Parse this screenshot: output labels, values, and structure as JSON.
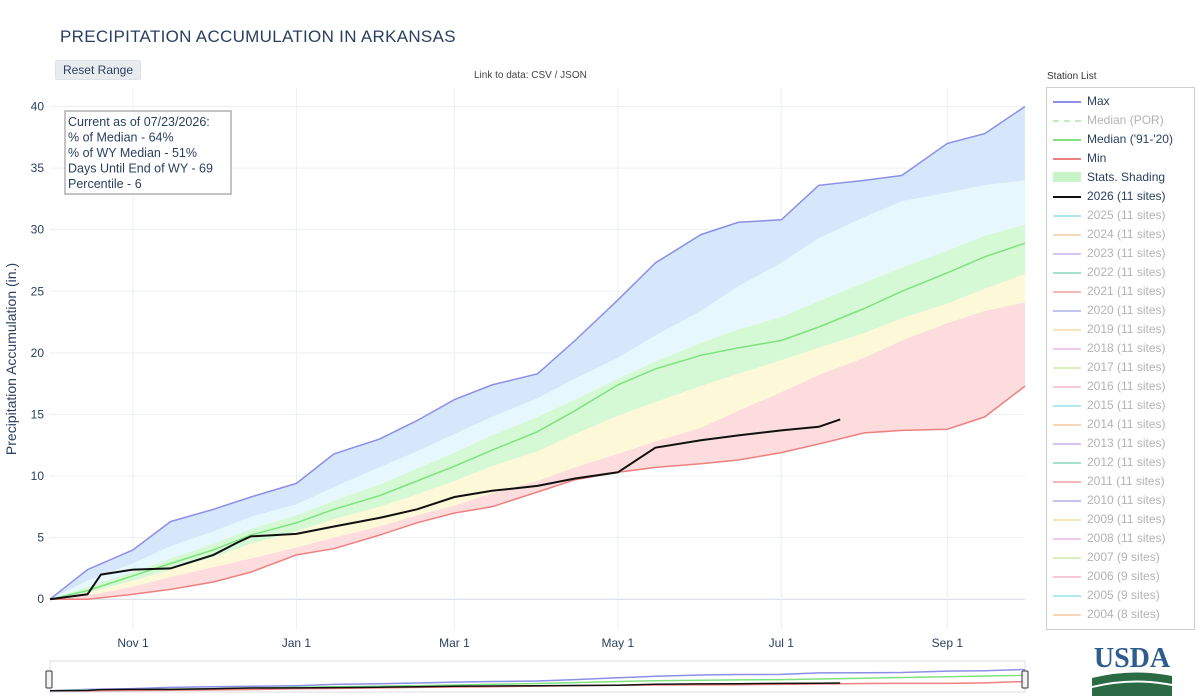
{
  "title": "PRECIPITATION ACCUMULATION IN ARKANSAS",
  "toolbar": {
    "reset_label": "Reset Range"
  },
  "data_link": {
    "prefix": "Link to data: ",
    "csv": "CSV",
    "sep": " / ",
    "json": "JSON"
  },
  "legend_title": "Station List",
  "logo_text": "USDA",
  "info_box": [
    "Current as of 07/23/2026:",
    "% of Median - 64%",
    "% of WY Median - 51%",
    "Days Until End of WY - 69",
    "Percentile - 6"
  ],
  "colors": {
    "max": "#8b8fe8",
    "median_por": "#a8e6a8",
    "median_9120": "#7fe27f",
    "min": "#ee8080",
    "current": "#111111",
    "grid": "#eceff3",
    "band_max": "#d6e6fb",
    "band_hi": "#e6f8fd",
    "band_mid": "#d5f8d5",
    "band_lo": "#fdf8d8",
    "band_min": "#fcdcdc"
  },
  "legend_items": [
    {
      "label": "Max",
      "color": "#8b8fe8",
      "style": "line",
      "faded": false
    },
    {
      "label": "Median (POR)",
      "color": "#a8e6a8",
      "style": "dash",
      "faded": true
    },
    {
      "label": "Median ('91-'20)",
      "color": "#7fe27f",
      "style": "line",
      "faded": false
    },
    {
      "label": "Min",
      "color": "#ee8080",
      "style": "line",
      "faded": false
    },
    {
      "label": "Stats. Shading",
      "color": "#c9f3c9",
      "style": "block",
      "faded": false
    },
    {
      "label": "2026 (11 sites)",
      "color": "#111111",
      "style": "thick",
      "faded": false
    },
    {
      "label": "2025 (11 sites)",
      "color": "#8fd8e8",
      "style": "line",
      "faded": true
    },
    {
      "label": "2024 (11 sites)",
      "color": "#f3c89a",
      "style": "line",
      "faded": true
    },
    {
      "label": "2023 (11 sites)",
      "color": "#c9a9ec",
      "style": "line",
      "faded": true
    },
    {
      "label": "2022 (11 sites)",
      "color": "#7fd4b8",
      "style": "line",
      "faded": true
    },
    {
      "label": "2021 (11 sites)",
      "color": "#f09a9a",
      "style": "line",
      "faded": true
    },
    {
      "label": "2020 (11 sites)",
      "color": "#a9a9ea",
      "style": "line",
      "faded": true
    },
    {
      "label": "2019 (11 sites)",
      "color": "#f3d89a",
      "style": "line",
      "faded": true
    },
    {
      "label": "2018 (11 sites)",
      "color": "#e8b0e8",
      "style": "line",
      "faded": true
    },
    {
      "label": "2017 (11 sites)",
      "color": "#cde8a0",
      "style": "line",
      "faded": true
    },
    {
      "label": "2016 (11 sites)",
      "color": "#f4b0c8",
      "style": "line",
      "faded": true
    },
    {
      "label": "2015 (11 sites)",
      "color": "#8fe0ea",
      "style": "line",
      "faded": true
    },
    {
      "label": "2014 (11 sites)",
      "color": "#f3c89a",
      "style": "line",
      "faded": true
    },
    {
      "label": "2013 (11 sites)",
      "color": "#c9a9ec",
      "style": "line",
      "faded": true
    },
    {
      "label": "2012 (11 sites)",
      "color": "#7fd4b8",
      "style": "line",
      "faded": true
    },
    {
      "label": "2011 (11 sites)",
      "color": "#f09a9a",
      "style": "line",
      "faded": true
    },
    {
      "label": "2010 (11 sites)",
      "color": "#a9a9ea",
      "style": "line",
      "faded": true
    },
    {
      "label": "2009 (11 sites)",
      "color": "#f3d89a",
      "style": "line",
      "faded": true
    },
    {
      "label": "2008 (11 sites)",
      "color": "#e8b0e8",
      "style": "line",
      "faded": true
    },
    {
      "label": "2007 (9 sites)",
      "color": "#cde8a0",
      "style": "line",
      "faded": true
    },
    {
      "label": "2006 (9 sites)",
      "color": "#f4b0c8",
      "style": "line",
      "faded": true
    },
    {
      "label": "2005 (9 sites)",
      "color": "#8fe0ea",
      "style": "line",
      "faded": true
    },
    {
      "label": "2004 (8 sites)",
      "color": "#f3c89a",
      "style": "line",
      "faded": true
    }
  ],
  "chart_data": {
    "type": "line",
    "xlabel": "",
    "ylabel": "Precipitation Accumulation (in.)",
    "x_unit": "date",
    "x_range": [
      "2025-10-01",
      "2026-09-30"
    ],
    "ylim": [
      -2.5,
      41.5
    ],
    "y_ticks": [
      0,
      5,
      10,
      15,
      20,
      25,
      30,
      35,
      40
    ],
    "x_ticks": [
      {
        "date": "2025-11-01",
        "label": "Nov 1"
      },
      {
        "date": "2026-01-01",
        "label": "Jan 1"
      },
      {
        "date": "2026-03-01",
        "label": "Mar 1"
      },
      {
        "date": "2026-05-01",
        "label": "May 1"
      },
      {
        "date": "2026-07-01",
        "label": "Jul 1"
      },
      {
        "date": "2026-09-01",
        "label": "Sep 1"
      }
    ],
    "grid": true,
    "legend_position": "right",
    "x": [
      "2025-10-01",
      "2025-10-15",
      "2025-11-01",
      "2025-11-15",
      "2025-12-01",
      "2025-12-15",
      "2026-01-01",
      "2026-01-15",
      "2026-02-01",
      "2026-02-15",
      "2026-03-01",
      "2026-03-15",
      "2026-04-01",
      "2026-04-15",
      "2026-05-01",
      "2026-05-15",
      "2026-06-01",
      "2026-06-15",
      "2026-07-01",
      "2026-07-15",
      "2026-08-01",
      "2026-08-15",
      "2026-09-01",
      "2026-09-15",
      "2026-09-30"
    ],
    "series": [
      {
        "name": "Max",
        "role": "max",
        "values": [
          0.0,
          2.4,
          4.0,
          6.3,
          7.3,
          8.3,
          9.4,
          11.8,
          13.0,
          14.5,
          16.2,
          17.4,
          18.3,
          21.0,
          24.3,
          27.3,
          29.6,
          30.6,
          30.8,
          33.6,
          34.0,
          34.4,
          37.0,
          37.8,
          40.0
        ]
      },
      {
        "name": "",
        "role": "p90",
        "values": [
          0.0,
          1.5,
          2.9,
          4.3,
          5.5,
          6.7,
          7.7,
          9.1,
          10.7,
          12.0,
          13.4,
          14.8,
          16.3,
          17.9,
          19.6,
          21.4,
          23.4,
          25.4,
          27.3,
          29.3,
          31.0,
          32.3,
          33.0,
          33.6,
          34.0
        ]
      },
      {
        "name": "",
        "role": "p70",
        "values": [
          0.0,
          1.0,
          2.2,
          3.3,
          4.5,
          5.7,
          6.8,
          8.0,
          9.3,
          10.6,
          11.9,
          13.3,
          14.8,
          16.2,
          17.9,
          19.3,
          20.8,
          21.9,
          22.9,
          24.2,
          25.7,
          26.9,
          28.3,
          29.5,
          30.4
        ]
      },
      {
        "name": "Median ('91-'20)",
        "role": "median",
        "values": [
          0.0,
          0.7,
          1.9,
          2.9,
          4.0,
          5.2,
          6.2,
          7.3,
          8.4,
          9.6,
          10.8,
          12.1,
          13.6,
          15.3,
          17.4,
          18.7,
          19.8,
          20.4,
          21.0,
          22.1,
          23.6,
          25.0,
          26.5,
          27.8,
          28.9
        ]
      },
      {
        "name": "",
        "role": "p30",
        "values": [
          0.0,
          0.5,
          1.5,
          2.4,
          3.4,
          4.5,
          5.5,
          6.5,
          7.5,
          8.5,
          9.6,
          10.8,
          12.0,
          13.4,
          14.9,
          16.0,
          17.3,
          18.3,
          19.4,
          20.4,
          21.6,
          22.8,
          24.0,
          25.2,
          26.4
        ]
      },
      {
        "name": "",
        "role": "p10",
        "values": [
          0.0,
          0.3,
          1.0,
          1.8,
          2.6,
          3.3,
          4.2,
          5.0,
          5.9,
          6.8,
          7.6,
          8.6,
          9.6,
          10.7,
          11.8,
          12.8,
          13.9,
          15.3,
          16.8,
          18.2,
          19.6,
          21.0,
          22.4,
          23.4,
          24.1
        ]
      },
      {
        "name": "Min",
        "role": "min",
        "values": [
          0.0,
          0.0,
          0.4,
          0.8,
          1.4,
          2.2,
          3.6,
          4.1,
          5.2,
          6.2,
          7.0,
          7.5,
          8.7,
          9.7,
          10.3,
          10.7,
          11.0,
          11.3,
          11.9,
          12.6,
          13.5,
          13.7,
          13.8,
          14.8,
          17.3
        ]
      },
      {
        "name": "2026 (11 sites)",
        "role": "current",
        "x": [
          "2025-10-01",
          "2025-10-08",
          "2025-10-15",
          "2025-10-20",
          "2025-11-01",
          "2025-11-15",
          "2025-12-01",
          "2025-12-10",
          "2025-12-15",
          "2026-01-01",
          "2026-01-15",
          "2026-02-01",
          "2026-02-15",
          "2026-03-01",
          "2026-03-15",
          "2026-04-01",
          "2026-04-15",
          "2026-05-01",
          "2026-05-15",
          "2026-06-01",
          "2026-06-15",
          "2026-07-01",
          "2026-07-15",
          "2026-07-23"
        ],
        "values": [
          0.0,
          0.2,
          0.4,
          2.0,
          2.4,
          2.5,
          3.6,
          4.6,
          5.1,
          5.3,
          5.9,
          6.6,
          7.3,
          8.3,
          8.8,
          9.2,
          9.8,
          10.3,
          12.3,
          12.9,
          13.3,
          13.7,
          14.0,
          14.6
        ]
      }
    ]
  }
}
